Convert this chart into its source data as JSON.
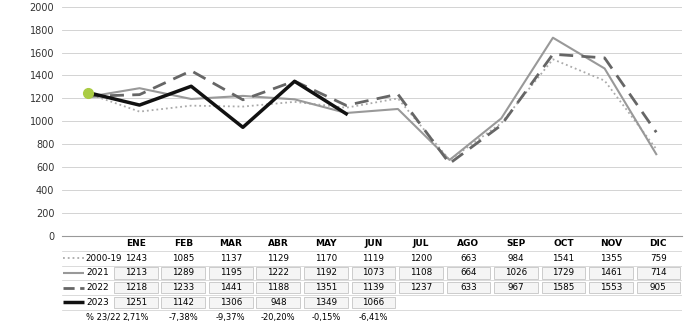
{
  "months": [
    "ENE",
    "FEB",
    "MAR",
    "ABR",
    "MAY",
    "JUN",
    "JUL",
    "AGO",
    "SEP",
    "OCT",
    "NOV",
    "DIC"
  ],
  "avg_2000_19": [
    1243,
    1085,
    1137,
    1129,
    1170,
    1119,
    1200,
    663,
    984,
    1541,
    1355,
    759
  ],
  "y2021": [
    1213,
    1289,
    1195,
    1222,
    1192,
    1073,
    1108,
    664,
    1026,
    1729,
    1461,
    714
  ],
  "y2022": [
    1218,
    1233,
    1441,
    1188,
    1351,
    1139,
    1237,
    633,
    967,
    1585,
    1553,
    905
  ],
  "y2023": [
    1251,
    1142,
    1306,
    948,
    1349,
    1066,
    null,
    null,
    null,
    null,
    null,
    null
  ],
  "row_avg_vals": [
    "1243",
    "1085",
    "1137",
    "1129",
    "1170",
    "1119",
    "1200",
    "663",
    "984",
    "1541",
    "1355",
    "759"
  ],
  "row_2021_vals": [
    "1213",
    "1289",
    "1195",
    "1222",
    "1192",
    "1073",
    "1108",
    "664",
    "1026",
    "1729",
    "1461",
    "714"
  ],
  "row_2022_vals": [
    "1218",
    "1233",
    "1441",
    "1188",
    "1351",
    "1139",
    "1237",
    "633",
    "967",
    "1585",
    "1553",
    "905"
  ],
  "row_2023_vals": [
    "1251",
    "1142",
    "1306",
    "948",
    "1349",
    "1066",
    "",
    "",
    "",
    "",
    "",
    ""
  ],
  "row_pct_vals": [
    "2,71%",
    "-7,38%",
    "-9,37%",
    "-20,20%",
    "-0,15%",
    "-6,41%",
    "",
    "",
    "",
    "",
    "",
    ""
  ],
  "color_avg": "#aaaaaa",
  "color_2021": "#999999",
  "color_2022": "#666666",
  "color_2023": "#111111",
  "marker_color": "#aacc44",
  "ylim": [
    0,
    2000
  ],
  "yticks": [
    0,
    200,
    400,
    600,
    800,
    1000,
    1200,
    1400,
    1600,
    1800,
    2000
  ],
  "grid_color": "#cccccc",
  "bg_color": "#ffffff"
}
